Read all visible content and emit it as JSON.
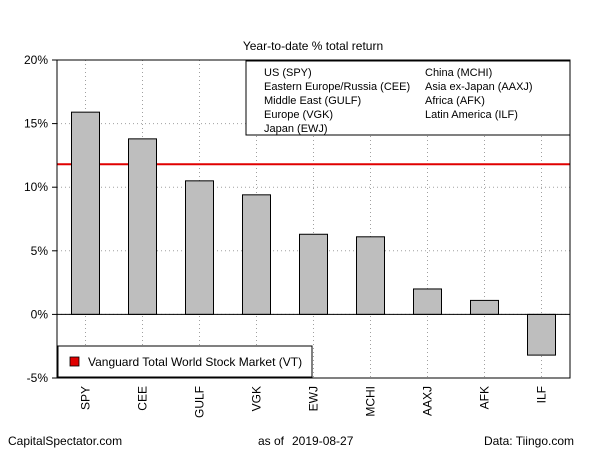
{
  "chart_data": {
    "type": "bar",
    "title": "Year-to-date % total return",
    "categories": [
      "SPY",
      "CEE",
      "GULF",
      "VGK",
      "EWJ",
      "MCHI",
      "AAXJ",
      "AFK",
      "ILF"
    ],
    "values": [
      15.9,
      13.8,
      10.5,
      9.4,
      6.3,
      6.1,
      2.0,
      1.1,
      -3.2
    ],
    "ylim": [
      -5,
      20
    ],
    "yticks": [
      -5,
      0,
      5,
      10,
      15,
      20
    ],
    "ytick_labels": [
      "-5%",
      "0%",
      "5%",
      "10%",
      "15%",
      "20%"
    ],
    "grid": true,
    "reference_line": {
      "value": 11.8,
      "color": "#e00000",
      "label": "Vanguard Total World Stock Market (VT)"
    },
    "legend_position": "bottom-left",
    "key_entries": [
      "US (SPY)",
      "China (MCHI)",
      "Eastern Europe/Russia (CEE)",
      "Asia ex-Japan (AAXJ)",
      "Middle East (GULF)",
      "Africa (AFK)",
      "Europe (VGK)",
      "Latin America (ILF)",
      "Japan (EWJ)"
    ],
    "colors": {
      "bar": "#bebebe",
      "reference": "#e00000"
    }
  },
  "footer": {
    "left": "CapitalSpectator.com",
    "center_prefix": "as of",
    "date": "2019-08-27",
    "right": "Data: Tiingo.com"
  }
}
